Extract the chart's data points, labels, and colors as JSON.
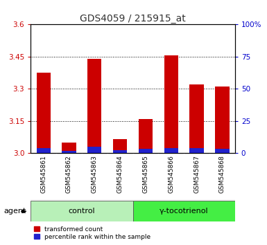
{
  "title": "GDS4059 / 215915_at",
  "samples": [
    "GSM545861",
    "GSM545862",
    "GSM545863",
    "GSM545864",
    "GSM545865",
    "GSM545866",
    "GSM545867",
    "GSM545868"
  ],
  "red_values": [
    3.375,
    3.05,
    3.44,
    3.065,
    3.16,
    3.455,
    3.32,
    3.31
  ],
  "blue_values": [
    3.025,
    3.01,
    3.03,
    3.015,
    3.02,
    3.025,
    3.025,
    3.02
  ],
  "ymin": 3.0,
  "ymax": 3.6,
  "yticks": [
    3.0,
    3.15,
    3.3,
    3.45,
    3.6
  ],
  "y2ticks_labels": [
    "0",
    "25",
    "50",
    "75",
    "100%"
  ],
  "groups": [
    {
      "label": "control",
      "indices": [
        0,
        1,
        2,
        3
      ],
      "color": "#b8f0b8"
    },
    {
      "label": "γ-tocotrienol",
      "indices": [
        4,
        5,
        6,
        7
      ],
      "color": "#44ee44"
    }
  ],
  "bar_color_red": "#cc0000",
  "bar_color_blue": "#2222cc",
  "bar_width": 0.55,
  "tick_color_left": "#cc0000",
  "tick_color_right": "#0000cc",
  "legend_red": "transformed count",
  "legend_blue": "percentile rank within the sample",
  "agent_label": "agent",
  "title_fontsize": 10,
  "sample_bg_color": "#cccccc",
  "title_color": "#333333"
}
